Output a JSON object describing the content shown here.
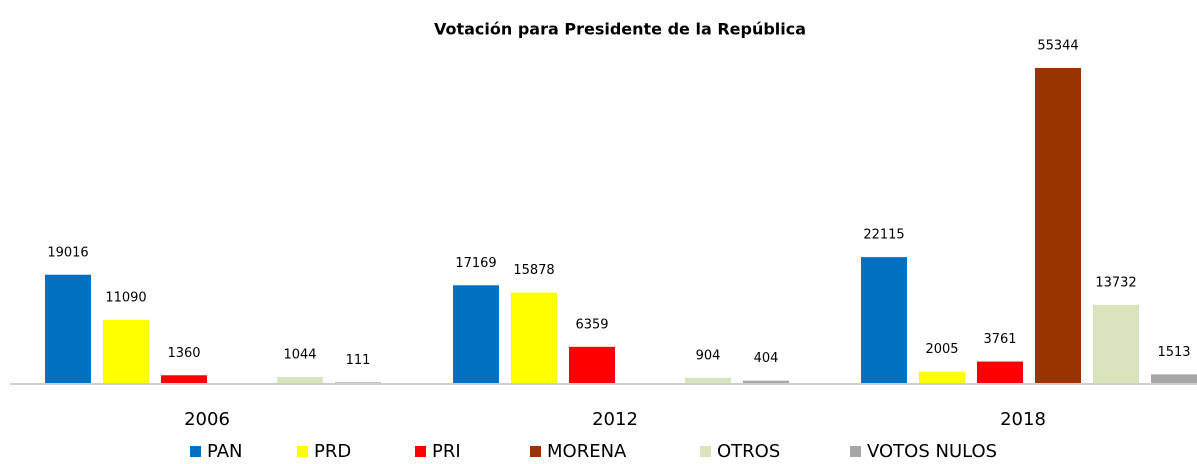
{
  "chart_data": {
    "type": "bar",
    "title": "Votación para Presidente de la República",
    "categories": [
      "2006",
      "2012",
      "2018"
    ],
    "series": [
      {
        "name": "PAN",
        "color": "#0070c0",
        "values": [
          19016,
          17169,
          22115
        ]
      },
      {
        "name": "PRD",
        "color": "#ffff00",
        "values": [
          11090,
          15878,
          2005
        ]
      },
      {
        "name": "PRI",
        "color": "#ff0000",
        "values": [
          1360,
          6359,
          3761
        ]
      },
      {
        "name": "MORENA",
        "color": "#993300",
        "values": [
          null,
          null,
          55344
        ]
      },
      {
        "name": "OTROS",
        "color": "#d8e4bc",
        "values": [
          1044,
          904,
          13732
        ]
      },
      {
        "name": "VOTOS NULOS",
        "color": "#a6a6a6",
        "values": [
          111,
          404,
          1513
        ]
      }
    ]
  }
}
